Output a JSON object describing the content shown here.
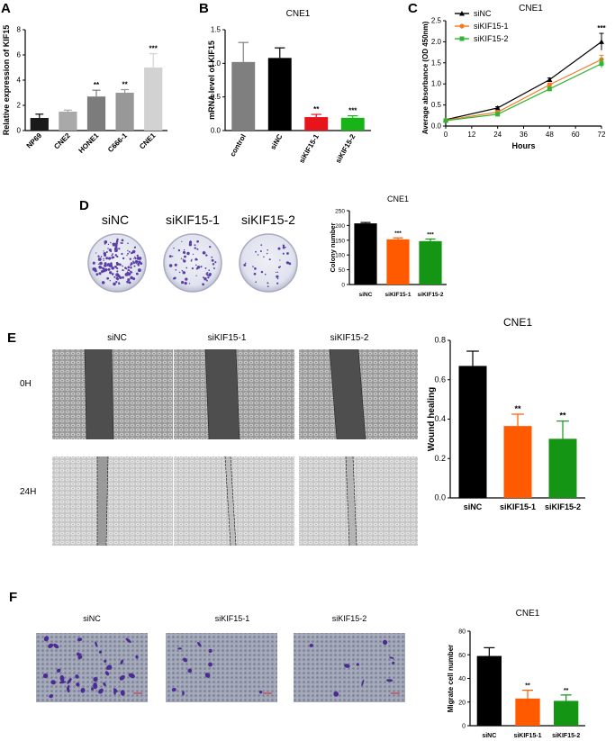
{
  "panels": {
    "A": {
      "label": "A"
    },
    "B": {
      "label": "B"
    },
    "C": {
      "label": "C"
    },
    "D": {
      "label": "D"
    },
    "E": {
      "label": "E"
    },
    "F": {
      "label": "F"
    }
  },
  "photos": {
    "dish_labels": [
      "siNC",
      "siKIF15-1",
      "siKIF15-2"
    ],
    "wound_col_labels": [
      "siNC",
      "siKIF15-1",
      "siKIF15-2"
    ],
    "wound_row_labels": [
      "0H",
      "24H"
    ],
    "transwell_labels": [
      "siNC",
      "siKIF15-1",
      "siKIF15-2"
    ]
  },
  "chart_data": [
    {
      "id": "A",
      "type": "bar",
      "title": "",
      "ylabel": "Relative expression of KIF15",
      "xlabel": "",
      "categories": [
        "NP69",
        "CNE2",
        "HONE1",
        "C666-1",
        "CNE1"
      ],
      "values": [
        1.0,
        1.5,
        2.7,
        3.0,
        5.0
      ],
      "errors": [
        0.3,
        0.12,
        0.5,
        0.25,
        1.1
      ],
      "significance": [
        "",
        "",
        "**",
        "**",
        "***"
      ],
      "colors": [
        "#1a1a1a",
        "#a9a9a9",
        "#7c7c7c",
        "#989898",
        "#d2d2d2"
      ],
      "ylim": [
        0,
        8
      ],
      "yticks": [
        "0",
        "2",
        "4",
        "6",
        "8"
      ]
    },
    {
      "id": "B",
      "type": "bar",
      "title": "CNE1",
      "ylabel": "mRNA level of KIF15",
      "xlabel": "",
      "categories": [
        "control",
        "siNC",
        "siKIF15-1",
        "siKIF15-2"
      ],
      "values": [
        1.02,
        1.08,
        0.2,
        0.19
      ],
      "errors": [
        0.29,
        0.15,
        0.04,
        0.03
      ],
      "significance": [
        "",
        "",
        "**",
        "***"
      ],
      "colors": [
        "#7f7f7f",
        "#000000",
        "#e8141c",
        "#17b317"
      ],
      "ylim": [
        0,
        1.5
      ],
      "yticks": [
        "0.0",
        "0.5",
        "1.0",
        "1.5"
      ]
    },
    {
      "id": "C",
      "type": "line",
      "title": "CNE1",
      "ylabel": "Average absorbance (OD 450nm)",
      "xlabel": "Hours",
      "x": [
        0,
        24,
        48,
        72
      ],
      "xticks": [
        "0",
        "12",
        "24",
        "36",
        "48",
        "60",
        "72"
      ],
      "series": [
        {
          "name": "siNC",
          "values": [
            0.15,
            0.43,
            1.1,
            2.0
          ],
          "errors": [
            0.02,
            0.03,
            0.04,
            0.2
          ],
          "color": "#000000",
          "marker": "triangle"
        },
        {
          "name": "siKIF15-1",
          "values": [
            0.14,
            0.33,
            0.98,
            1.58
          ],
          "errors": [
            0.02,
            0.03,
            0.04,
            0.1
          ],
          "color": "#f47a24",
          "marker": "circle"
        },
        {
          "name": "siKIF15-2",
          "values": [
            0.13,
            0.28,
            0.88,
            1.48
          ],
          "errors": [
            0.02,
            0.03,
            0.04,
            0.1
          ],
          "color": "#2fb52f",
          "marker": "square"
        }
      ],
      "significance_label": "***",
      "xlim": [
        0,
        72
      ],
      "ylim": [
        0,
        2.5
      ],
      "yticks": [
        "0.0",
        "0.5",
        "1.0",
        "1.5",
        "2.0",
        "2.5"
      ]
    },
    {
      "id": "D",
      "type": "bar",
      "title": "CNE1",
      "ylabel": "Colony number",
      "xlabel": "",
      "categories": [
        "siNC",
        "siKIF15-1",
        "siKIF15-2"
      ],
      "values": [
        207,
        153,
        147
      ],
      "errors": [
        3,
        5,
        7
      ],
      "significance": [
        "",
        "***",
        "***"
      ],
      "colors": [
        "#000000",
        "#ff5a00",
        "#149514"
      ],
      "ylim": [
        0,
        250
      ],
      "yticks": [
        "0",
        "50",
        "100",
        "150",
        "200",
        "250"
      ]
    },
    {
      "id": "E",
      "type": "bar",
      "title": "CNE1",
      "ylabel": "Wound healing",
      "xlabel": "",
      "categories": [
        "siNC",
        "siKIF15-1",
        "siKIF15-2"
      ],
      "values": [
        0.67,
        0.365,
        0.3
      ],
      "errors": [
        0.075,
        0.06,
        0.09
      ],
      "significance": [
        "",
        "**",
        "**"
      ],
      "colors": [
        "#000000",
        "#ff5a00",
        "#149514"
      ],
      "ylim": [
        0,
        0.8
      ],
      "yticks": [
        "0.0",
        "0.2",
        "0.4",
        "0.6",
        "0.8"
      ]
    },
    {
      "id": "F",
      "type": "bar",
      "title": "CNE1",
      "ylabel": "Migrate cell number",
      "xlabel": "",
      "categories": [
        "siNC",
        "siKIF15-1",
        "siKIF15-2"
      ],
      "values": [
        59,
        23,
        21
      ],
      "errors": [
        7,
        7,
        5
      ],
      "significance": [
        "",
        "**",
        "**"
      ],
      "colors": [
        "#000000",
        "#ff5a00",
        "#149514"
      ],
      "ylim": [
        0,
        80
      ],
      "yticks": [
        "0",
        "20",
        "40",
        "60",
        "80"
      ]
    }
  ]
}
